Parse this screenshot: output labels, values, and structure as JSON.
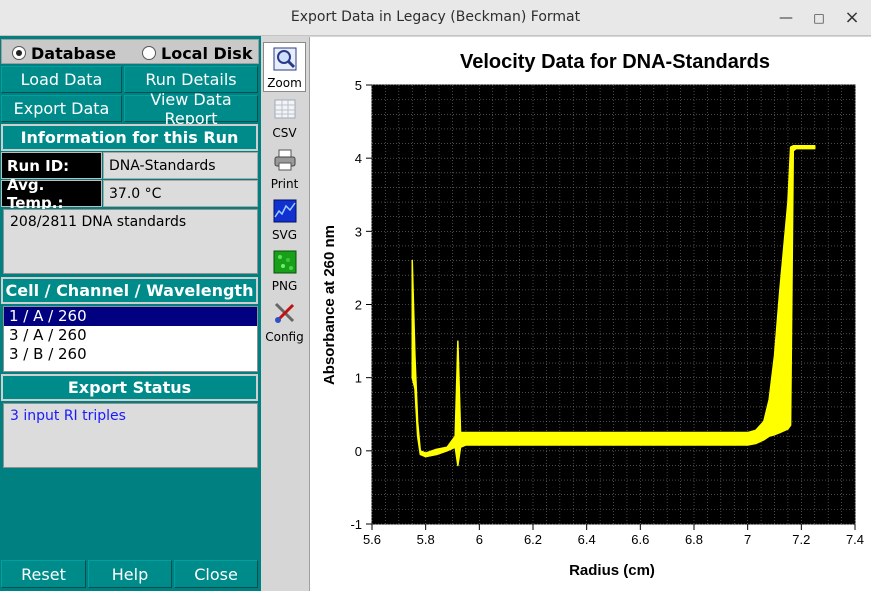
{
  "window": {
    "title": "Export Data in Legacy (Beckman) Format",
    "minimize": "—",
    "maximize": "□",
    "close": "×"
  },
  "source": {
    "database_label": "Database",
    "local_disk_label": "Local Disk",
    "selected": "Database"
  },
  "buttons": {
    "load_data": "Load Data",
    "run_details": "Run Details",
    "export_data": "Export Data",
    "view_report": "View Data Report",
    "reset": "Reset",
    "help": "Help",
    "close": "Close"
  },
  "run_info": {
    "header": "Information for this Run",
    "run_id_label": "Run ID:",
    "run_id_value": "DNA-Standards",
    "temp_label": "Avg. Temp.:",
    "temp_value": "37.0 °C",
    "description": "208/2811 DNA standards"
  },
  "triples": {
    "header": "Cell / Channel / Wavelength",
    "items": [
      "1 / A / 260",
      "3 / A / 260",
      "3 / B / 260"
    ],
    "selected_index": 0
  },
  "export_status": {
    "header": "Export Status",
    "text": "3 input RI triples"
  },
  "tools": [
    {
      "label": "Zoom",
      "icon": "zoom-icon",
      "active": true
    },
    {
      "label": "CSV",
      "icon": "csv-icon"
    },
    {
      "label": "Print",
      "icon": "printer-icon"
    },
    {
      "label": "SVG",
      "icon": "svg-icon"
    },
    {
      "label": "PNG",
      "icon": "png-icon"
    },
    {
      "label": "Config",
      "icon": "config-icon"
    }
  ],
  "chart_data": {
    "type": "line",
    "title": "Velocity Data for DNA-Standards",
    "xlabel": "Radius (cm)",
    "ylabel": "Absorbance at 260 nm",
    "xlim": [
      5.6,
      7.4
    ],
    "ylim": [
      -1,
      5
    ],
    "xticks": [
      5.6,
      5.8,
      6,
      6.2,
      6.4,
      6.6,
      6.8,
      7,
      7.2,
      7.4
    ],
    "yticks": [
      -1,
      0,
      1,
      2,
      3,
      4,
      5
    ],
    "grid": true,
    "background_color": "#000000",
    "series_color": "#ffff00",
    "band": {
      "x": [
        5.75,
        5.76,
        5.77,
        5.78,
        5.8,
        5.84,
        5.88,
        5.91,
        5.92,
        5.93,
        5.95,
        6.0,
        6.2,
        6.4,
        6.6,
        6.8,
        7.0,
        7.03,
        7.06,
        7.08,
        7.1,
        7.12,
        7.15,
        7.16,
        7.17,
        7.18,
        7.25
      ],
      "lower": [
        1.0,
        0.85,
        0.2,
        -0.05,
        -0.08,
        -0.05,
        0.0,
        0.05,
        -0.2,
        0.05,
        0.08,
        0.08,
        0.08,
        0.08,
        0.08,
        0.08,
        0.08,
        0.1,
        0.15,
        0.2,
        0.22,
        0.25,
        0.3,
        0.35,
        4.1,
        4.13,
        4.13
      ],
      "upper": [
        2.6,
        1.3,
        0.4,
        0.0,
        -0.03,
        0.02,
        0.05,
        0.2,
        1.5,
        0.25,
        0.25,
        0.25,
        0.25,
        0.25,
        0.25,
        0.25,
        0.25,
        0.28,
        0.4,
        0.7,
        1.3,
        2.2,
        3.4,
        4.15,
        4.17,
        4.17,
        4.17
      ]
    }
  }
}
